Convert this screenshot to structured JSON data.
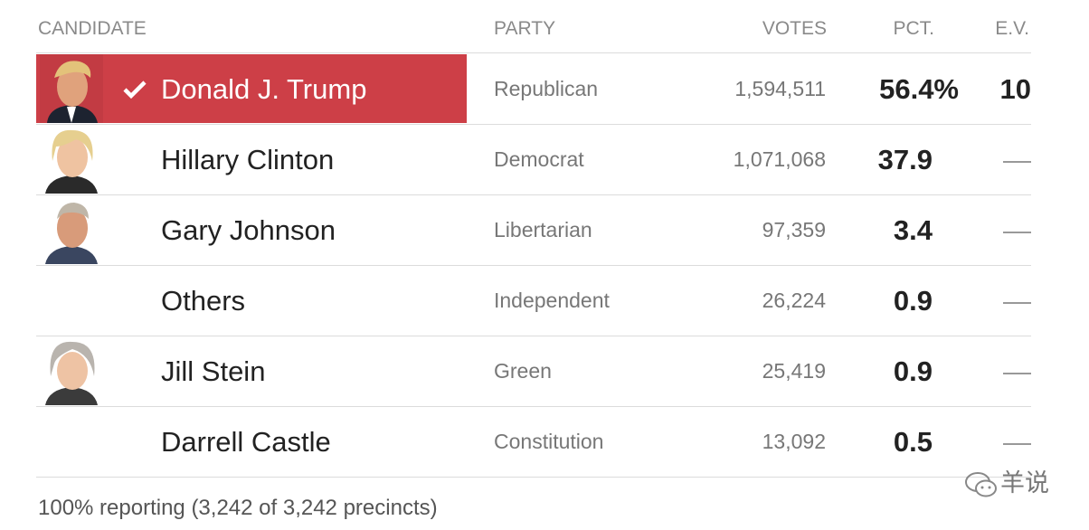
{
  "header": {
    "columns": [
      "CANDIDATE",
      "PARTY",
      "VOTES",
      "PCT.",
      "E.V."
    ]
  },
  "rows": [
    {
      "candidate": "Donald J. Trump",
      "party": "Republican",
      "votes": "1,594,511",
      "pct": "56.4%",
      "ev": "10"
    },
    {
      "candidate": "Hillary Clinton",
      "party": "Democrat",
      "votes": "1,071,068",
      "pct": "37.9",
      "ev": "—"
    },
    {
      "candidate": "Gary Johnson",
      "party": "Libertarian",
      "votes": "97,359",
      "pct": "3.4",
      "ev": "—"
    },
    {
      "candidate": "Others",
      "party": "Independent",
      "votes": "26,224",
      "pct": "0.9",
      "ev": "—"
    },
    {
      "candidate": "Jill Stein",
      "party": "Green",
      "votes": "25,419",
      "pct": "0.9",
      "ev": "—"
    },
    {
      "candidate": "Darrell Castle",
      "party": "Constitution",
      "votes": "13,092",
      "pct": "0.5",
      "ev": "—"
    }
  ],
  "footer": "100% reporting (3,242 of 3,242 precincts)",
  "watermark": "羊说"
}
